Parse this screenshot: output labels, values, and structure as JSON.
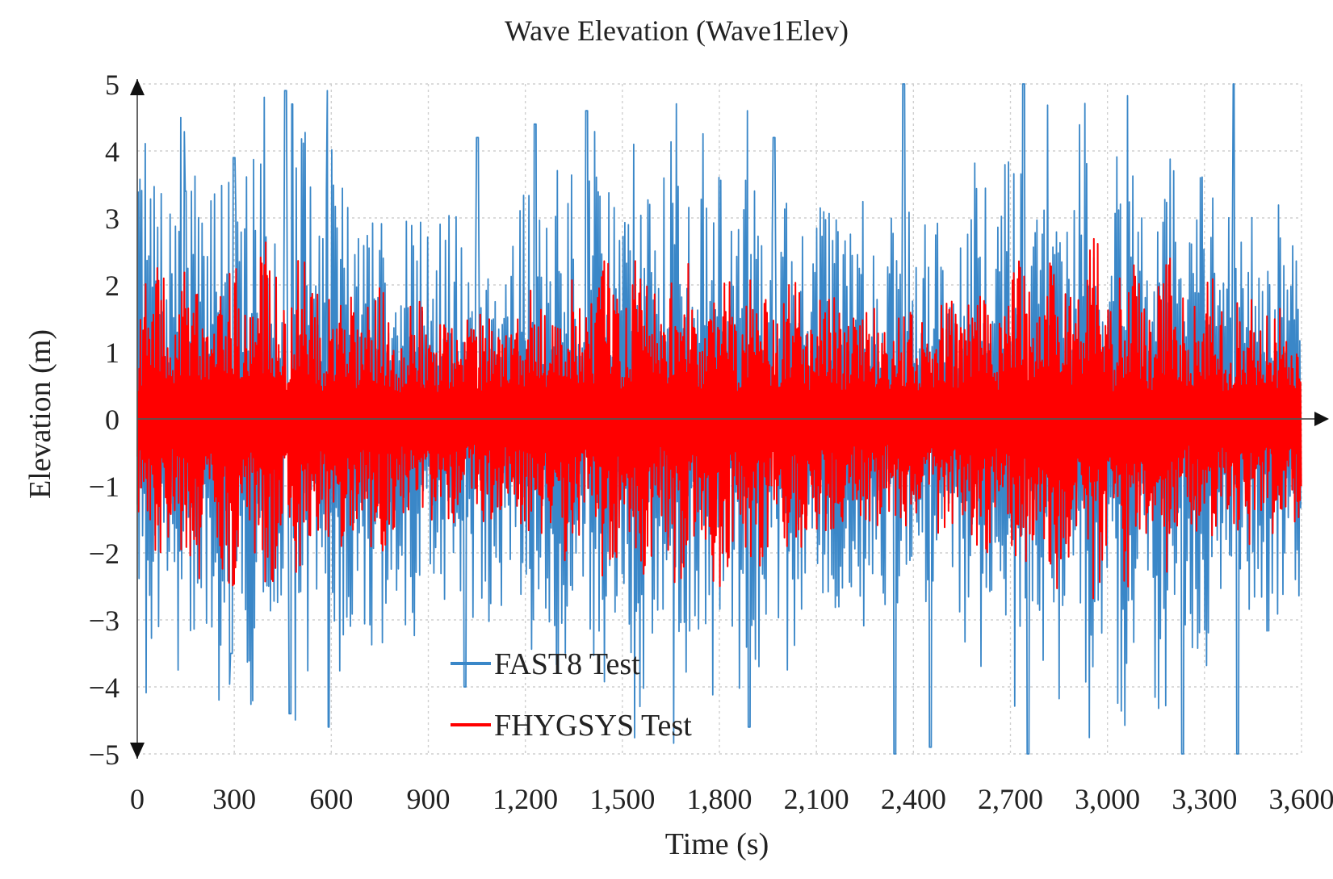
{
  "chart_data": {
    "type": "line",
    "title": "Wave Elevation (Wave1Elev)",
    "xlabel": "Time (s)",
    "ylabel": "Elevation (m)",
    "xlim": [
      0,
      3600
    ],
    "ylim": [
      -5,
      5
    ],
    "grid": true,
    "legend_position": "bottom-center",
    "x_ticks": [
      0,
      300,
      600,
      900,
      1200,
      1500,
      1800,
      2100,
      2400,
      2700,
      3000,
      3300,
      3600
    ],
    "x_tick_labels": [
      "0",
      "300",
      "600",
      "900",
      "1,200",
      "1,500",
      "1,800",
      "2,100",
      "2,400",
      "2,700",
      "3,000",
      "3,300",
      "3,600"
    ],
    "y_ticks": [
      -5,
      -4,
      -3,
      -2,
      -1,
      0,
      1,
      2,
      3,
      4,
      5
    ],
    "y_tick_labels": [
      "−5",
      "−4",
      "−3",
      "−2",
      "−1",
      "0",
      "1",
      "2",
      "3",
      "4",
      "5"
    ],
    "series": [
      {
        "name": "FAST8 Test",
        "color": "#3a87c8",
        "x_range": [
          0,
          3600
        ],
        "approx_amplitude": 5.0,
        "peak_max": 5.0,
        "peak_min": -5.0,
        "notable_peaks": [
          [
            150,
            3.4
          ],
          [
            300,
            3.9
          ],
          [
            460,
            4.9
          ],
          [
            480,
            4.7
          ],
          [
            590,
            4.9
          ],
          [
            1050,
            4.2
          ],
          [
            1230,
            4.4
          ],
          [
            1390,
            4.6
          ],
          [
            1890,
            4.6
          ],
          [
            1970,
            4.2
          ],
          [
            2370,
            5.0
          ],
          [
            2740,
            5.0
          ],
          [
            3390,
            5.0
          ]
        ],
        "notable_troughs": [
          [
            290,
            -3.5
          ],
          [
            470,
            -4.4
          ],
          [
            590,
            -4.6
          ],
          [
            1010,
            -4.0
          ],
          [
            1890,
            -4.6
          ],
          [
            2340,
            -5.0
          ],
          [
            2450,
            -4.9
          ],
          [
            2750,
            -5.0
          ],
          [
            3230,
            -5.0
          ],
          [
            3400,
            -5.0
          ]
        ]
      },
      {
        "name": "FHYGSYS Test",
        "color": "#ff0000",
        "x_range": [
          0,
          3600
        ],
        "approx_amplitude": 2.7,
        "peak_max": 2.7,
        "peak_min": -3.0
      }
    ]
  }
}
